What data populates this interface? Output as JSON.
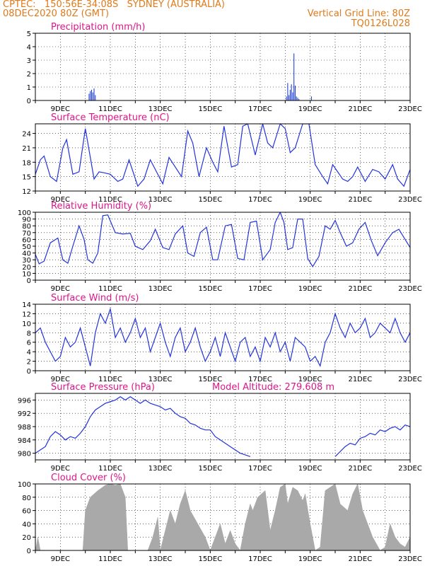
{
  "header": {
    "line1_left": "CPTEC:   150:56E-34:08S   SYDNEY (AUSTRALIA)",
    "line2_left": "08DEC2020 80Z (GMT)",
    "line2_right": "Vertical Grid Line: 80Z",
    "line3_right": "TQ0126L028",
    "model_altitude": "Model Altitude: 279.608 m"
  },
  "colors": {
    "header": "#e07a1a",
    "title": "#e0158a",
    "series": "#2233dd",
    "cloud": "#a9a9a9",
    "bars": "#1f3fd6"
  },
  "chart_data": [
    {
      "type": "bar",
      "title": "Precipitation (mm/h)",
      "xlabels": [
        "9DEC",
        "11DEC",
        "13DEC",
        "15DEC",
        "17DEC",
        "19DEC",
        "21DEC",
        "23DEC"
      ],
      "xrange": [
        8.0,
        23.0
      ],
      "ylim": [
        0,
        5
      ],
      "yticks": [
        0,
        1,
        2,
        3,
        4,
        5
      ],
      "grid": true,
      "x": [
        10.15,
        10.2,
        10.25,
        10.3,
        10.35,
        10.4,
        18.05,
        18.1,
        18.15,
        18.2,
        18.25,
        18.3,
        18.35,
        18.4,
        18.45,
        18.5,
        18.55,
        19.05
      ],
      "values": [
        0.5,
        0.7,
        0.8,
        0.6,
        0.9,
        0.4,
        0.3,
        1.3,
        0.4,
        0.8,
        1.2,
        0.6,
        3.5,
        1.1,
        0.3,
        0.2,
        0.1,
        0.3
      ]
    },
    {
      "type": "line",
      "title": "Surface Temperature (nC)",
      "xlabels": [
        "9DEC",
        "11DEC",
        "13DEC",
        "15DEC",
        "17DEC",
        "19DEC",
        "21DEC",
        "23DEC"
      ],
      "xrange": [
        8.0,
        23.0
      ],
      "ylim": [
        12,
        26
      ],
      "yticks": [
        12,
        15,
        18,
        21,
        24
      ],
      "grid": true,
      "x": [
        8.0,
        8.2,
        8.35,
        8.6,
        8.85,
        9.1,
        9.25,
        9.5,
        9.75,
        10.0,
        10.2,
        10.35,
        10.55,
        10.75,
        11.0,
        11.3,
        11.5,
        11.75,
        12.1,
        12.35,
        12.6,
        12.85,
        13.1,
        13.35,
        13.6,
        13.85,
        14.1,
        14.3,
        14.55,
        14.85,
        15.1,
        15.3,
        15.55,
        15.85,
        16.1,
        16.3,
        16.5,
        16.8,
        17.1,
        17.3,
        17.5,
        17.8,
        18.0,
        18.2,
        18.4,
        18.7,
        18.95,
        19.2,
        19.5,
        19.7,
        19.9,
        20.1,
        20.3,
        20.5,
        20.7,
        20.9,
        21.2,
        21.5,
        21.75,
        22.0,
        22.3,
        22.5,
        22.75,
        23.0
      ],
      "values": [
        15.5,
        18.5,
        19.3,
        15.0,
        14.0,
        21.0,
        22.7,
        15.5,
        16.0,
        25.0,
        19.0,
        14.5,
        16.0,
        15.8,
        15.5,
        14.0,
        14.5,
        18.5,
        13.0,
        14.5,
        18.5,
        16.0,
        13.5,
        19.0,
        17.0,
        15.0,
        24.5,
        22.0,
        15.0,
        21.0,
        18.0,
        16.0,
        25.5,
        17.0,
        17.5,
        25.5,
        26.0,
        19.5,
        26.0,
        22.0,
        21.0,
        26.0,
        25.0,
        20.0,
        21.0,
        26.0,
        26.0,
        17.5,
        15.0,
        13.5,
        17.5,
        16.0,
        14.5,
        14.0,
        15.0,
        17.0,
        14.0,
        16.5,
        16.0,
        14.5,
        17.5,
        14.5,
        13.0,
        16.5
      ]
    },
    {
      "type": "line",
      "title": "Relative Humidity (%)",
      "xlabels": [
        "9DEC",
        "11DEC",
        "13DEC",
        "15DEC",
        "17DEC",
        "19DEC",
        "21DEC",
        "23DEC"
      ],
      "xrange": [
        8.0,
        23.0
      ],
      "ylim": [
        0,
        100
      ],
      "yticks": [
        0,
        10,
        20,
        30,
        40,
        50,
        60,
        70,
        80,
        90,
        100
      ],
      "grid": true,
      "x": [
        8.0,
        8.15,
        8.35,
        8.6,
        8.9,
        9.1,
        9.3,
        9.5,
        9.75,
        9.95,
        10.1,
        10.3,
        10.5,
        10.7,
        10.9,
        11.2,
        11.5,
        11.8,
        12.0,
        12.3,
        12.6,
        12.8,
        13.1,
        13.35,
        13.6,
        13.9,
        14.1,
        14.35,
        14.6,
        14.85,
        15.1,
        15.3,
        15.6,
        15.85,
        16.1,
        16.35,
        16.6,
        16.85,
        17.1,
        17.4,
        17.6,
        17.8,
        17.95,
        18.1,
        18.3,
        18.5,
        18.7,
        18.9,
        19.1,
        19.35,
        19.6,
        19.8,
        20.0,
        20.2,
        20.45,
        20.7,
        20.95,
        21.2,
        21.45,
        21.7,
        22.0,
        22.3,
        22.55,
        22.8,
        23.0
      ],
      "values": [
        38,
        24,
        28,
        55,
        62,
        30,
        25,
        50,
        80,
        60,
        30,
        25,
        40,
        95,
        96,
        70,
        68,
        69,
        50,
        45,
        58,
        75,
        48,
        45,
        68,
        80,
        40,
        35,
        70,
        78,
        30,
        30,
        80,
        82,
        32,
        30,
        85,
        87,
        30,
        45,
        85,
        100,
        85,
        45,
        48,
        90,
        90,
        32,
        20,
        35,
        80,
        75,
        88,
        70,
        50,
        55,
        75,
        85,
        58,
        36,
        55,
        70,
        75,
        60,
        48
      ]
    },
    {
      "type": "line",
      "title": "Surface Wind (m/s)",
      "xlabels": [
        "9DEC",
        "11DEC",
        "13DEC",
        "15DEC",
        "17DEC",
        "19DEC",
        "21DEC",
        "23DEC"
      ],
      "xrange": [
        8.0,
        23.0
      ],
      "ylim": [
        0,
        14
      ],
      "yticks": [
        0,
        2,
        4,
        6,
        8,
        10,
        12,
        14
      ],
      "grid": true,
      "x": [
        8.0,
        8.2,
        8.4,
        8.6,
        8.8,
        9.0,
        9.2,
        9.4,
        9.6,
        9.8,
        10.0,
        10.2,
        10.4,
        10.6,
        10.8,
        11.0,
        11.2,
        11.4,
        11.6,
        11.8,
        12.0,
        12.2,
        12.4,
        12.6,
        12.8,
        13.0,
        13.2,
        13.4,
        13.6,
        13.8,
        14.0,
        14.2,
        14.4,
        14.6,
        14.8,
        15.0,
        15.2,
        15.4,
        15.6,
        15.8,
        16.0,
        16.2,
        16.4,
        16.6,
        16.8,
        17.0,
        17.2,
        17.4,
        17.6,
        17.8,
        18.0,
        18.2,
        18.4,
        18.6,
        18.8,
        19.0,
        19.2,
        19.4,
        19.6,
        19.8,
        20.0,
        20.2,
        20.4,
        20.6,
        20.8,
        21.0,
        21.2,
        21.4,
        21.6,
        21.8,
        22.0,
        22.2,
        22.4,
        22.6,
        22.8,
        23.0
      ],
      "values": [
        8,
        9,
        6,
        4,
        2,
        3,
        7,
        5,
        6,
        9,
        5,
        1,
        8,
        12,
        10,
        13,
        7,
        9,
        6,
        8,
        11,
        7,
        9,
        4,
        7,
        10,
        6,
        3,
        7,
        9,
        4,
        6,
        9,
        5,
        2,
        4,
        7,
        3,
        8,
        5,
        2,
        6,
        7,
        3,
        5,
        2,
        7,
        5,
        8,
        4,
        6,
        2,
        7,
        6,
        5,
        2,
        3,
        1,
        6,
        8,
        12,
        9,
        7,
        10,
        8,
        9,
        11,
        7,
        8,
        10,
        9,
        8,
        11,
        8,
        6,
        8
      ]
    },
    {
      "type": "line",
      "title": "Surface Pressure (hPa)",
      "xlabels": [
        "9DEC",
        "11DEC",
        "13DEC",
        "15DEC",
        "17DEC",
        "19DEC",
        "21DEC",
        "23DEC"
      ],
      "xrange": [
        8.0,
        23.0
      ],
      "ylim": [
        978,
        998
      ],
      "yticks": [
        980,
        984,
        988,
        992,
        996
      ],
      "grid": true,
      "x": [
        8.0,
        8.2,
        8.4,
        8.6,
        8.8,
        9.0,
        9.2,
        9.4,
        9.6,
        9.8,
        10.0,
        10.2,
        10.4,
        10.6,
        10.8,
        11.0,
        11.2,
        11.4,
        11.6,
        11.8,
        12.0,
        12.2,
        12.4,
        12.6,
        12.8,
        13.0,
        13.2,
        13.4,
        13.6,
        13.8,
        14.0,
        14.2,
        14.4,
        14.6,
        14.8,
        15.0,
        15.2,
        15.4,
        15.6,
        15.8,
        16.0,
        16.2,
        16.4,
        16.6
      ],
      "values": [
        980,
        981,
        982,
        985,
        986.5,
        985.5,
        984,
        985,
        984.5,
        986,
        988,
        991,
        993,
        994,
        995,
        995.5,
        996,
        997,
        996,
        997,
        996,
        995,
        996,
        995,
        994.5,
        994,
        993,
        993.5,
        992,
        991,
        990.5,
        989,
        988.5,
        987.5,
        987,
        987,
        985,
        984,
        983,
        982,
        981,
        980,
        979.5,
        979
      ],
      "x2": [
        20.0,
        20.2,
        20.4,
        20.6,
        20.8,
        21.0,
        21.2,
        21.4,
        21.6,
        21.8,
        22.0,
        22.2,
        22.4,
        22.6,
        22.8,
        23.0
      ],
      "values2": [
        979,
        980.5,
        982,
        983,
        982.5,
        984.5,
        985,
        986,
        985.5,
        987,
        986.5,
        987.5,
        988,
        987,
        988.5,
        988
      ]
    },
    {
      "type": "area",
      "title": "Cloud Cover (%)",
      "xlabels": [
        "9DEC",
        "11DEC",
        "13DEC",
        "15DEC",
        "17DEC",
        "19DEC",
        "21DEC",
        "23DEC"
      ],
      "xrange": [
        8.0,
        23.0
      ],
      "ylim": [
        0,
        100
      ],
      "yticks": [
        0,
        20,
        40,
        60,
        80,
        100
      ],
      "grid": true,
      "x": [
        8.0,
        8.1,
        8.2,
        9.9,
        10.0,
        10.2,
        10.5,
        10.8,
        11.0,
        11.2,
        11.4,
        11.6,
        11.7,
        12.5,
        12.7,
        12.9,
        13.0,
        13.2,
        13.4,
        13.6,
        13.8,
        14.0,
        14.2,
        14.5,
        14.8,
        15.0,
        15.2,
        15.4,
        15.6,
        15.8,
        16.0,
        16.2,
        16.4,
        16.6,
        16.7,
        16.9,
        17.2,
        17.4,
        17.6,
        17.8,
        18.0,
        18.1,
        18.3,
        18.5,
        18.7,
        18.8,
        19.0,
        19.2,
        19.4,
        19.6,
        19.8,
        20.0,
        20.2,
        20.5,
        20.7,
        20.9,
        21.1,
        21.3,
        21.5,
        21.8,
        22.0,
        22.2,
        22.4,
        22.6,
        22.8,
        23.0
      ],
      "values": [
        0,
        20,
        0,
        0,
        60,
        80,
        90,
        98,
        100,
        98,
        100,
        80,
        0,
        0,
        20,
        50,
        0,
        30,
        60,
        40,
        70,
        90,
        60,
        40,
        20,
        0,
        20,
        40,
        10,
        30,
        10,
        0,
        40,
        70,
        60,
        80,
        90,
        30,
        60,
        95,
        100,
        70,
        95,
        90,
        75,
        85,
        40,
        0,
        5,
        90,
        95,
        100,
        70,
        60,
        85,
        100,
        60,
        40,
        20,
        0,
        5,
        40,
        20,
        10,
        5,
        20
      ]
    }
  ]
}
